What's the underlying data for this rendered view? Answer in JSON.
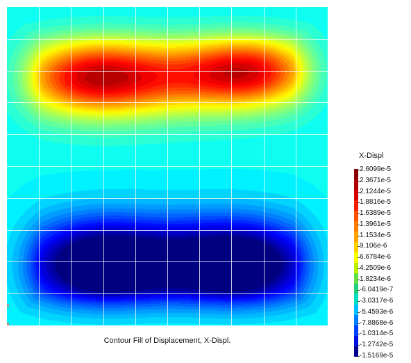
{
  "plot": {
    "caption": "Contour Fill of Displacement, X-Displ.",
    "grid": {
      "columns": 10,
      "rows": 10
    }
  },
  "legend": {
    "title": "X-Displ",
    "labels": [
      "2.6099e-5",
      "2.3671e-5",
      "2.1244e-5",
      "1.8816e-5",
      "1.6389e-5",
      "1.3961e-5",
      "1.1534e-5",
      "9.106e-6",
      "6.6784e-6",
      "4.2509e-6",
      "1.8234e-6",
      "-6.0419e-7",
      "-3.0317e-6",
      "-5.4593e-6",
      "-7.8868e-6",
      "-1.0314e-5",
      "-1.2742e-5",
      "-1.5169e-5"
    ],
    "colors": [
      "#8b0000",
      "#b30000",
      "#d80000",
      "#f02000",
      "#ff5000",
      "#ff7a00",
      "#ffa500",
      "#ffd000",
      "#f8ff00",
      "#b8f000",
      "#60e040",
      "#20d080",
      "#00e0c0",
      "#00c0ff",
      "#0080ff",
      "#0040ff",
      "#0010e0",
      "#00008b"
    ]
  }
}
